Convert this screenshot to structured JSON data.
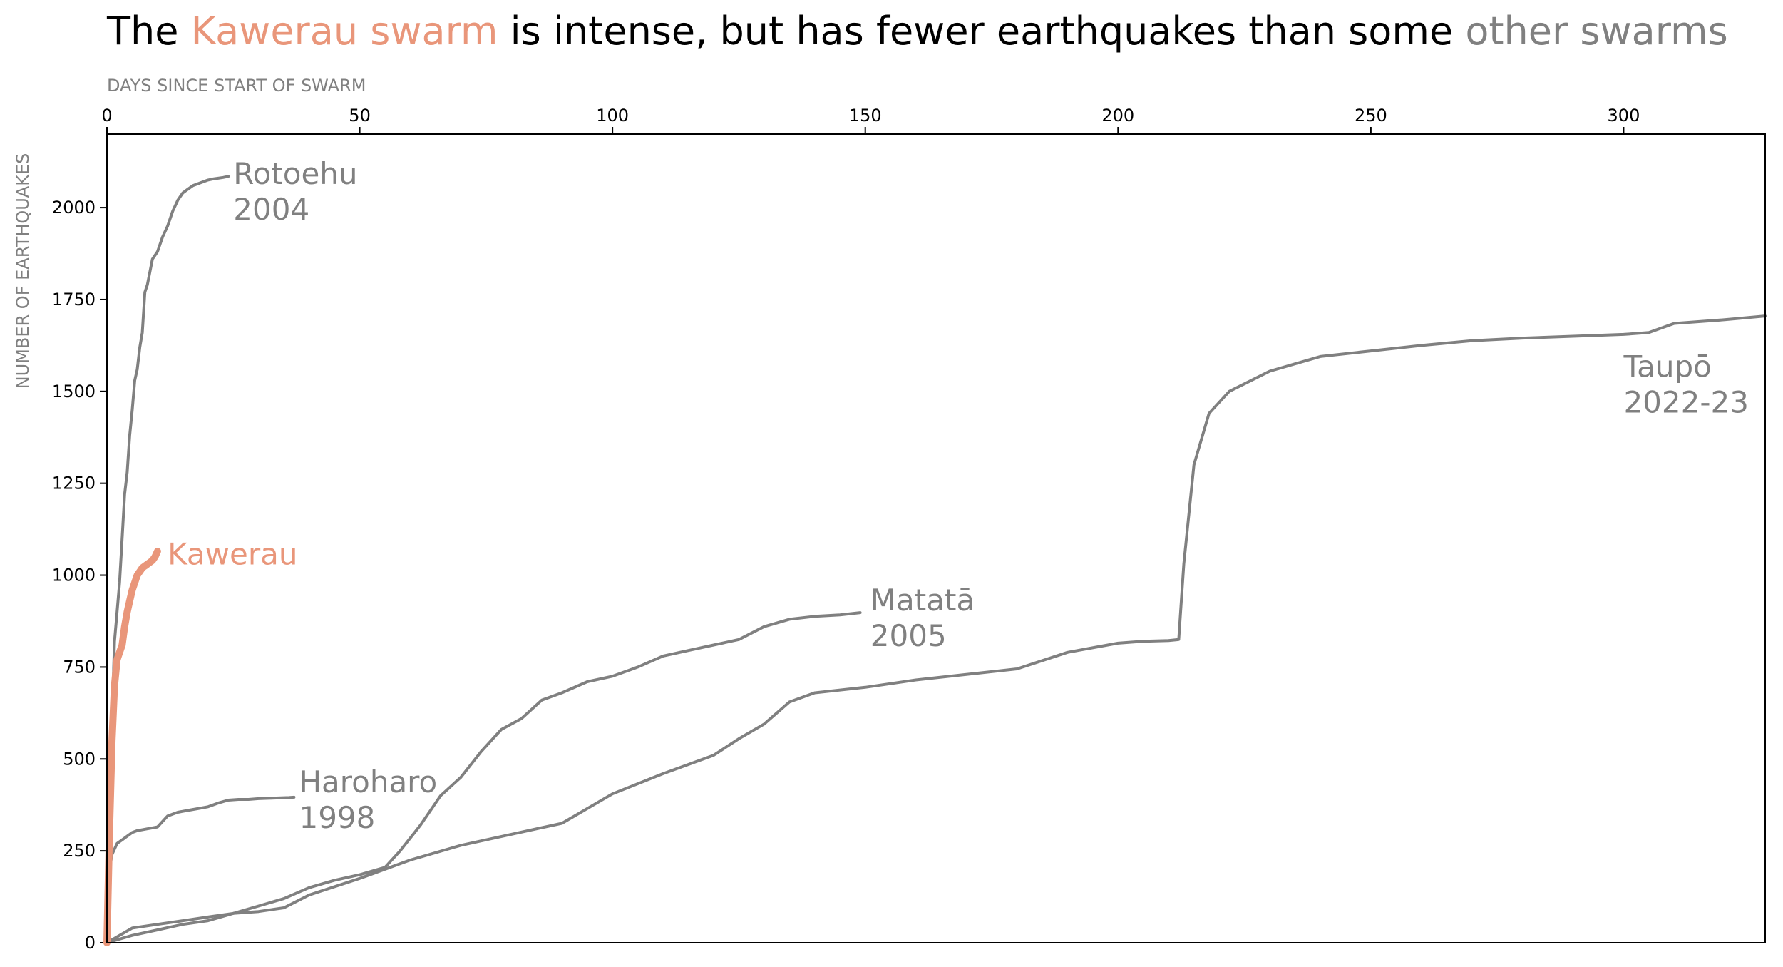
{
  "title": {
    "part1": "The ",
    "highlight": "Kawerau swarm",
    "part2": " is intense, but has fewer earthquakes than some ",
    "grey": "other swarms"
  },
  "colors": {
    "highlight": "#E9967A",
    "other": "#808080",
    "axis": "#000000",
    "label": "#808080"
  },
  "chart_data": {
    "type": "line",
    "title": "The Kawerau swarm is intense, but has fewer earthquakes than some other swarms",
    "xlabel": "DAYS SINCE START OF SWARM",
    "ylabel": "NUMBER OF EARTHQUAKES",
    "xlim": [
      0,
      328
    ],
    "ylim": [
      0,
      2200
    ],
    "x_axis_position": "top",
    "grid": false,
    "x_ticks": [
      0,
      50,
      100,
      150,
      200,
      250,
      300
    ],
    "y_ticks": [
      0,
      250,
      500,
      750,
      1000,
      1250,
      1500,
      1750,
      2000
    ],
    "series": [
      {
        "name": "Rotoehu 2004",
        "label_lines": [
          "Rotoehu",
          "2004"
        ],
        "label_anchor": [
          25,
          2095
        ],
        "highlight": false,
        "x": [
          0,
          0.5,
          1,
          1.5,
          2,
          2.5,
          3,
          3.5,
          4,
          4.5,
          5,
          5.5,
          6,
          6.5,
          7,
          7.5,
          8,
          9,
          10,
          11,
          12,
          13,
          14,
          15,
          16,
          17,
          18,
          19,
          20,
          21,
          22,
          23,
          24
        ],
        "y": [
          0,
          250,
          600,
          820,
          900,
          980,
          1100,
          1220,
          1280,
          1380,
          1450,
          1530,
          1560,
          1620,
          1660,
          1770,
          1790,
          1860,
          1880,
          1920,
          1950,
          1990,
          2020,
          2040,
          2050,
          2060,
          2065,
          2070,
          2075,
          2078,
          2080,
          2082,
          2085
        ]
      },
      {
        "name": "Kawerau",
        "label_lines": [
          "Kawerau"
        ],
        "label_anchor": [
          12,
          1060
        ],
        "highlight": true,
        "x": [
          0,
          0.5,
          1,
          1.5,
          2,
          2.5,
          3,
          3.5,
          4,
          4.5,
          5,
          5.5,
          6,
          6.5,
          7,
          7.5,
          8,
          8.5,
          9,
          9.5,
          10
        ],
        "y": [
          0,
          300,
          550,
          700,
          770,
          790,
          810,
          860,
          900,
          930,
          960,
          980,
          1000,
          1010,
          1020,
          1025,
          1030,
          1035,
          1040,
          1050,
          1065
        ]
      },
      {
        "name": "Haroharo 1998",
        "label_lines": [
          "Haroharo",
          "1998"
        ],
        "label_anchor": [
          38,
          440
        ],
        "highlight": false,
        "x": [
          0,
          0.5,
          1,
          2,
          3,
          4,
          5,
          6,
          8,
          10,
          12,
          14,
          16,
          18,
          20,
          22,
          24,
          26,
          28,
          30,
          32,
          34,
          36,
          37
        ],
        "y": [
          0,
          200,
          240,
          270,
          280,
          290,
          300,
          305,
          310,
          315,
          345,
          355,
          360,
          365,
          370,
          380,
          388,
          390,
          390,
          392,
          393,
          394,
          395,
          396
        ]
      },
      {
        "name": "Matatā 2005",
        "label_lines": [
          "Matatā",
          "2005"
        ],
        "label_anchor": [
          151,
          935
        ],
        "highlight": false,
        "x": [
          0,
          5,
          10,
          15,
          20,
          25,
          30,
          35,
          40,
          45,
          50,
          55,
          58,
          62,
          66,
          70,
          74,
          78,
          82,
          86,
          90,
          95,
          100,
          105,
          110,
          115,
          120,
          125,
          130,
          135,
          140,
          145,
          149
        ],
        "y": [
          0,
          20,
          35,
          50,
          60,
          80,
          100,
          120,
          150,
          170,
          185,
          205,
          250,
          320,
          400,
          450,
          520,
          580,
          610,
          660,
          680,
          710,
          725,
          750,
          780,
          795,
          810,
          825,
          860,
          880,
          888,
          892,
          898
        ]
      },
      {
        "name": "Taupō 2022-23",
        "label_lines": [
          "Taupō",
          "2022-23"
        ],
        "label_anchor": [
          300,
          1570
        ],
        "highlight": false,
        "x": [
          0,
          5,
          10,
          15,
          20,
          25,
          30,
          35,
          40,
          50,
          60,
          70,
          80,
          90,
          100,
          110,
          120,
          125,
          130,
          135,
          140,
          150,
          160,
          170,
          180,
          190,
          200,
          205,
          210,
          212,
          213,
          215,
          218,
          222,
          230,
          240,
          250,
          260,
          270,
          280,
          290,
          300,
          305,
          310,
          320,
          328
        ],
        "y": [
          0,
          40,
          50,
          60,
          70,
          80,
          85,
          95,
          130,
          175,
          225,
          265,
          295,
          325,
          405,
          460,
          510,
          555,
          595,
          655,
          680,
          695,
          715,
          730,
          745,
          790,
          815,
          820,
          822,
          825,
          1030,
          1300,
          1440,
          1500,
          1555,
          1595,
          1610,
          1625,
          1638,
          1645,
          1650,
          1655,
          1660,
          1685,
          1695,
          1705
        ]
      }
    ]
  }
}
